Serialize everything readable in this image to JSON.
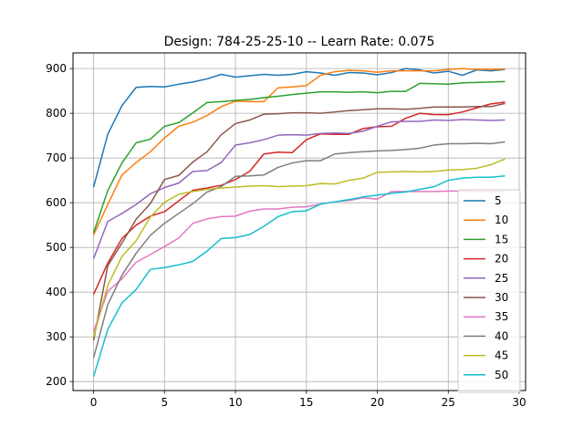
{
  "chart_data": {
    "type": "line",
    "title": "Design: 784-25-25-10 -- Learn Rate: 0.075",
    "xlabel": "",
    "ylabel": "",
    "xlim": [
      -1.45,
      30.45
    ],
    "ylim": [
      180,
      935
    ],
    "xticks": [
      0,
      5,
      10,
      15,
      20,
      25,
      30
    ],
    "yticks": [
      200,
      300,
      400,
      500,
      600,
      700,
      800,
      900
    ],
    "grid": true,
    "legend_position": "center-right",
    "x": [
      0,
      1,
      2,
      3,
      4,
      5,
      6,
      7,
      8,
      9,
      10,
      11,
      12,
      13,
      14,
      15,
      16,
      17,
      18,
      19,
      20,
      21,
      22,
      23,
      24,
      25,
      26,
      27,
      28,
      29
    ],
    "series": [
      {
        "name": "5",
        "color": "#1f77b4",
        "values": [
          635,
          753,
          817,
          858,
          860,
          859,
          865,
          870,
          877,
          887,
          881,
          884,
          887,
          885,
          887,
          893,
          890,
          885,
          891,
          890,
          886,
          891,
          900,
          897,
          890,
          894,
          885,
          897,
          895,
          898
        ]
      },
      {
        "name": "10",
        "color": "#ff7f0e",
        "values": [
          528,
          596,
          662,
          690,
          714,
          745,
          771,
          780,
          795,
          815,
          827,
          826,
          826,
          857,
          859,
          862,
          885,
          893,
          896,
          895,
          892,
          895,
          895,
          895,
          895,
          898,
          900,
          898,
          898,
          899
        ]
      },
      {
        "name": "15",
        "color": "#2ca02c",
        "values": [
          533,
          627,
          689,
          734,
          742,
          771,
          779,
          801,
          824,
          826,
          829,
          831,
          835,
          838,
          842,
          845,
          848,
          848,
          847,
          848,
          846,
          849,
          849,
          867,
          866,
          865,
          868,
          869,
          870,
          871
        ]
      },
      {
        "name": "20",
        "color": "#d62728",
        "values": [
          395,
          465,
          520,
          550,
          570,
          580,
          604,
          628,
          633,
          639,
          652,
          670,
          709,
          713,
          712,
          741,
          754,
          753,
          753,
          766,
          770,
          771,
          789,
          800,
          797,
          797,
          803,
          812,
          821,
          825
        ]
      },
      {
        "name": "25",
        "color": "#9467bd",
        "values": [
          475,
          558,
          576,
          596,
          620,
          634,
          644,
          670,
          672,
          690,
          729,
          734,
          741,
          751,
          752,
          751,
          755,
          756,
          755,
          760,
          771,
          781,
          782,
          782,
          785,
          784,
          786,
          785,
          784,
          785
        ]
      },
      {
        "name": "30",
        "color": "#8c564b",
        "values": [
          292,
          459,
          510,
          563,
          598,
          652,
          661,
          691,
          714,
          752,
          777,
          785,
          798,
          799,
          801,
          801,
          800,
          803,
          806,
          808,
          810,
          810,
          809,
          811,
          814,
          814,
          814,
          815,
          815,
          822
        ]
      },
      {
        "name": "35",
        "color": "#e377c2",
        "values": [
          312,
          402,
          430,
          467,
          484,
          502,
          521,
          554,
          564,
          569,
          570,
          581,
          586,
          586,
          590,
          591,
          597,
          602,
          605,
          611,
          608,
          625,
          625,
          625,
          625,
          626,
          626,
          625,
          625,
          625
        ]
      },
      {
        "name": "40",
        "color": "#7f7f7f",
        "values": [
          253,
          372,
          438,
          487,
          527,
          554,
          576,
          598,
          624,
          636,
          659,
          660,
          662,
          679,
          689,
          694,
          694,
          709,
          712,
          714,
          716,
          717,
          719,
          722,
          729,
          732,
          732,
          733,
          732,
          736
        ]
      },
      {
        "name": "45",
        "color": "#bcbd22",
        "values": [
          300,
          415,
          480,
          515,
          568,
          601,
          619,
          625,
          630,
          633,
          635,
          637,
          638,
          636,
          637,
          638,
          643,
          642,
          650,
          655,
          668,
          669,
          670,
          669,
          670,
          673,
          674,
          677,
          685,
          698
        ]
      },
      {
        "name": "50",
        "color": "#17becf",
        "values": [
          211,
          317,
          376,
          406,
          451,
          455,
          461,
          469,
          492,
          520,
          522,
          529,
          547,
          569,
          580,
          582,
          597,
          602,
          607,
          613,
          617,
          621,
          624,
          630,
          636,
          650,
          655,
          657,
          657,
          660
        ]
      }
    ]
  }
}
